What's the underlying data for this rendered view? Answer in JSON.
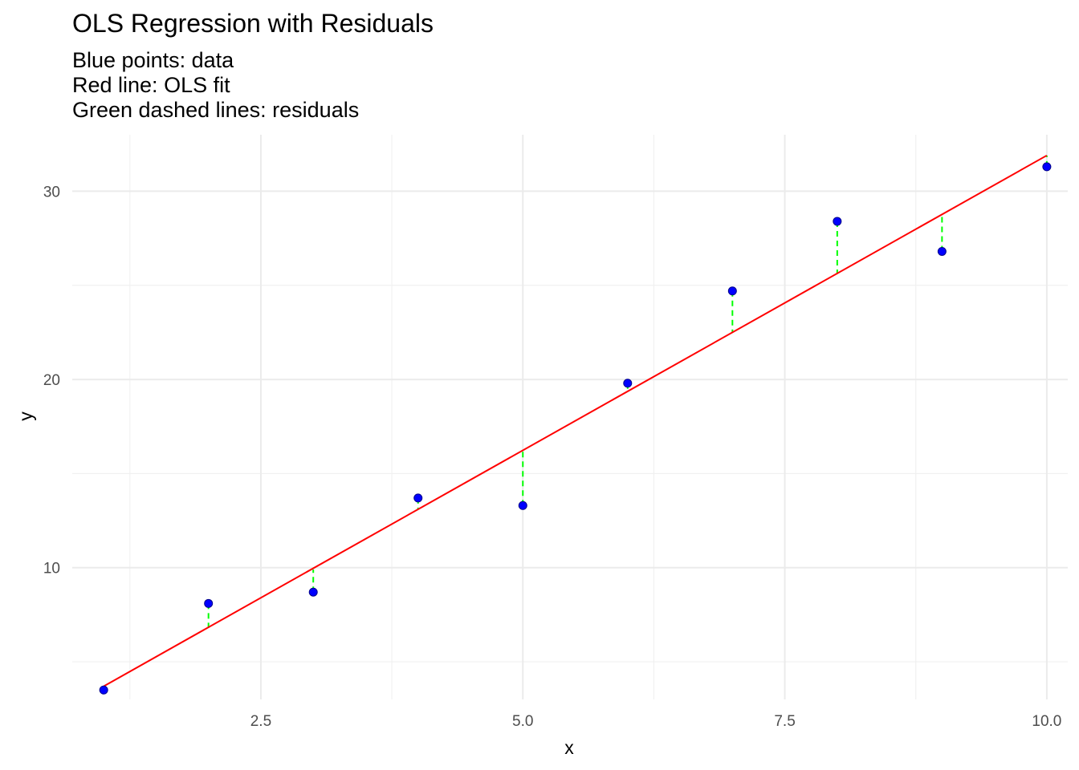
{
  "chart_data": {
    "type": "scatter",
    "title": "OLS Regression with Residuals",
    "subtitle": [
      "Blue points: data",
      "Red line: OLS fit",
      "Green dashed lines: residuals"
    ],
    "xlabel": "x",
    "ylabel": "y",
    "xlim": [
      0.7,
      10.2
    ],
    "ylim": [
      3.0,
      33.0
    ],
    "x_ticks": [
      2.5,
      5.0,
      7.5,
      10.0
    ],
    "x_tick_labels": [
      "2.5",
      "5.0",
      "7.5",
      "10.0"
    ],
    "y_ticks": [
      10,
      20,
      30
    ],
    "y_tick_labels": [
      "10",
      "20",
      "30"
    ],
    "grid": true,
    "legend": "none",
    "series": [
      {
        "type": "scatter",
        "color": "#0000ff",
        "x": [
          1,
          2,
          3,
          4,
          5,
          6,
          7,
          8,
          9,
          10
        ],
        "y": [
          3.5,
          8.1,
          8.7,
          13.7,
          13.3,
          19.8,
          24.7,
          28.4,
          26.8,
          31.3
        ]
      },
      {
        "type": "line",
        "color": "#ff0000",
        "x": [
          1,
          10
        ],
        "y": [
          3.7,
          31.9
        ]
      },
      {
        "type": "residuals",
        "color": "#00ff00",
        "style": "dashed",
        "x": [
          1,
          2,
          3,
          4,
          5,
          6,
          7,
          8,
          9,
          10
        ],
        "y_observed": [
          3.5,
          8.1,
          8.7,
          13.7,
          13.3,
          19.8,
          24.7,
          28.4,
          26.8,
          31.3
        ],
        "y_fitted": [
          3.7,
          6.8,
          9.9,
          13.1,
          16.2,
          19.4,
          22.5,
          25.6,
          28.8,
          31.9
        ]
      }
    ]
  }
}
